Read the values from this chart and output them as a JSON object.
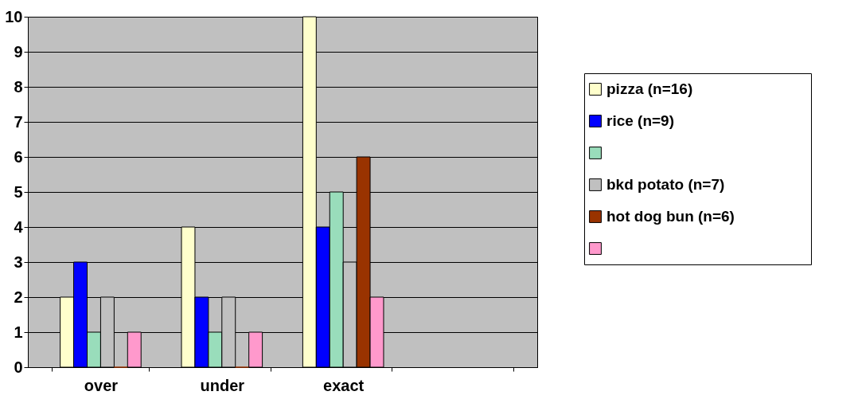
{
  "chart_data": {
    "type": "bar",
    "categories": [
      "over",
      "under",
      "exact",
      null
    ],
    "series": [
      {
        "name": "pizza (n=16)",
        "color": "#ffffcc",
        "values": [
          2,
          4,
          10,
          null
        ]
      },
      {
        "name": "rice (n=9)",
        "color": "#0000ff",
        "values": [
          3,
          2,
          4,
          null
        ]
      },
      {
        "color": "#99ddbb",
        "values": [
          1,
          1,
          5,
          null
        ]
      },
      {
        "name": "bkd potato (n=7)",
        "color": "#c0c0c0",
        "values": [
          2,
          2,
          3,
          null
        ]
      },
      {
        "name": "hot dog bun (n=6)",
        "color": "#993300",
        "values": [
          0,
          0,
          6,
          null
        ]
      },
      {
        "color": "#ff99cc",
        "values": [
          1,
          1,
          2,
          null
        ]
      }
    ],
    "ylim": [
      0,
      10
    ],
    "yticks": [
      0,
      1,
      2,
      3,
      4,
      5,
      6,
      7,
      8,
      9,
      10
    ],
    "grid": "y",
    "legend": "right"
  }
}
